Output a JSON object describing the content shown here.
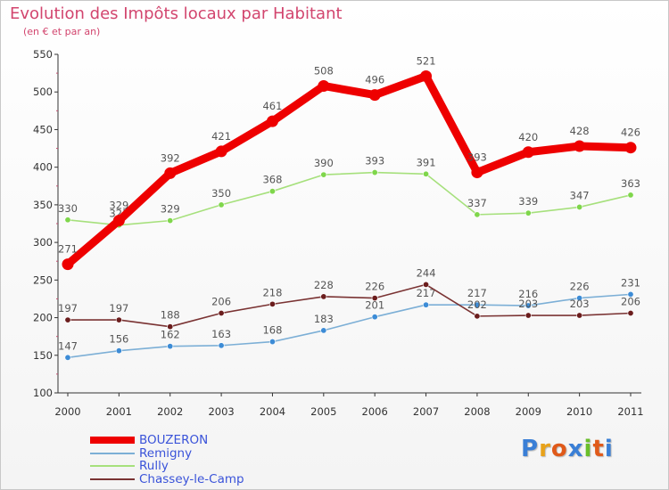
{
  "chart_data": {
    "type": "line",
    "title": "Evolution des Impôts locaux par Habitant",
    "subtitle": "(en € et par an)",
    "xlabel": "",
    "ylabel": "",
    "ylim": [
      100,
      550
    ],
    "yticks": [
      100,
      150,
      200,
      250,
      300,
      350,
      400,
      450,
      500,
      550
    ],
    "categories": [
      "2000",
      "2001",
      "2002",
      "2003",
      "2004",
      "2005",
      "2006",
      "2007",
      "2008",
      "2009",
      "2010",
      "2011"
    ],
    "grid": false,
    "legend_position": "bottom-left",
    "series": [
      {
        "name": "BOUZERON",
        "color": "#ee0000",
        "point_color": "#ee0000",
        "label_color": "#555555",
        "emphasis": true,
        "values": [
          271,
          329,
          392,
          421,
          461,
          508,
          496,
          521,
          393,
          420,
          428,
          426
        ],
        "labels": [
          "271",
          "329",
          "392",
          "421",
          "461",
          "508",
          "496",
          "521",
          "393",
          "420",
          "428",
          "426"
        ]
      },
      {
        "name": "Remigny",
        "color": "#7cafd6",
        "point_color": "#3d8cd6",
        "label_color": "#555555",
        "emphasis": false,
        "values": [
          147,
          156,
          162,
          163,
          168,
          183,
          201,
          217,
          217,
          216,
          226,
          231
        ],
        "labels": [
          "147",
          "156",
          "162",
          "163",
          "168",
          "183",
          "201",
          "217",
          "217",
          "216",
          "226",
          "231"
        ]
      },
      {
        "name": "Rully",
        "color": "#a6e07c",
        "point_color": "#7fd64b",
        "label_color": "#555555",
        "emphasis": false,
        "values": [
          330,
          323,
          329,
          350,
          368,
          390,
          393,
          391,
          337,
          339,
          347,
          363
        ],
        "labels": [
          "330",
          "323",
          "329",
          "350",
          "368",
          "390",
          "393",
          "391",
          "337",
          "339",
          "347",
          "363"
        ]
      },
      {
        "name": "Chassey-le-Camp",
        "color": "#7a3333",
        "point_color": "#6b1d1d",
        "label_color": "#555555",
        "emphasis": false,
        "values": [
          197,
          197,
          188,
          206,
          218,
          228,
          226,
          244,
          202,
          203,
          203,
          206
        ],
        "labels": [
          "197",
          "197",
          "188",
          "206",
          "218",
          "228",
          "226",
          "244",
          "202",
          "203",
          "203",
          "206"
        ]
      }
    ]
  },
  "logo": {
    "letters": [
      "P",
      "r",
      "o",
      "x",
      "i",
      "t",
      "i"
    ],
    "colors": [
      "#3a7fd6",
      "#e8a21a",
      "#e05a1a",
      "#3a7fd6",
      "#6abf2a",
      "#e05a1a",
      "#3a7fd6"
    ]
  }
}
